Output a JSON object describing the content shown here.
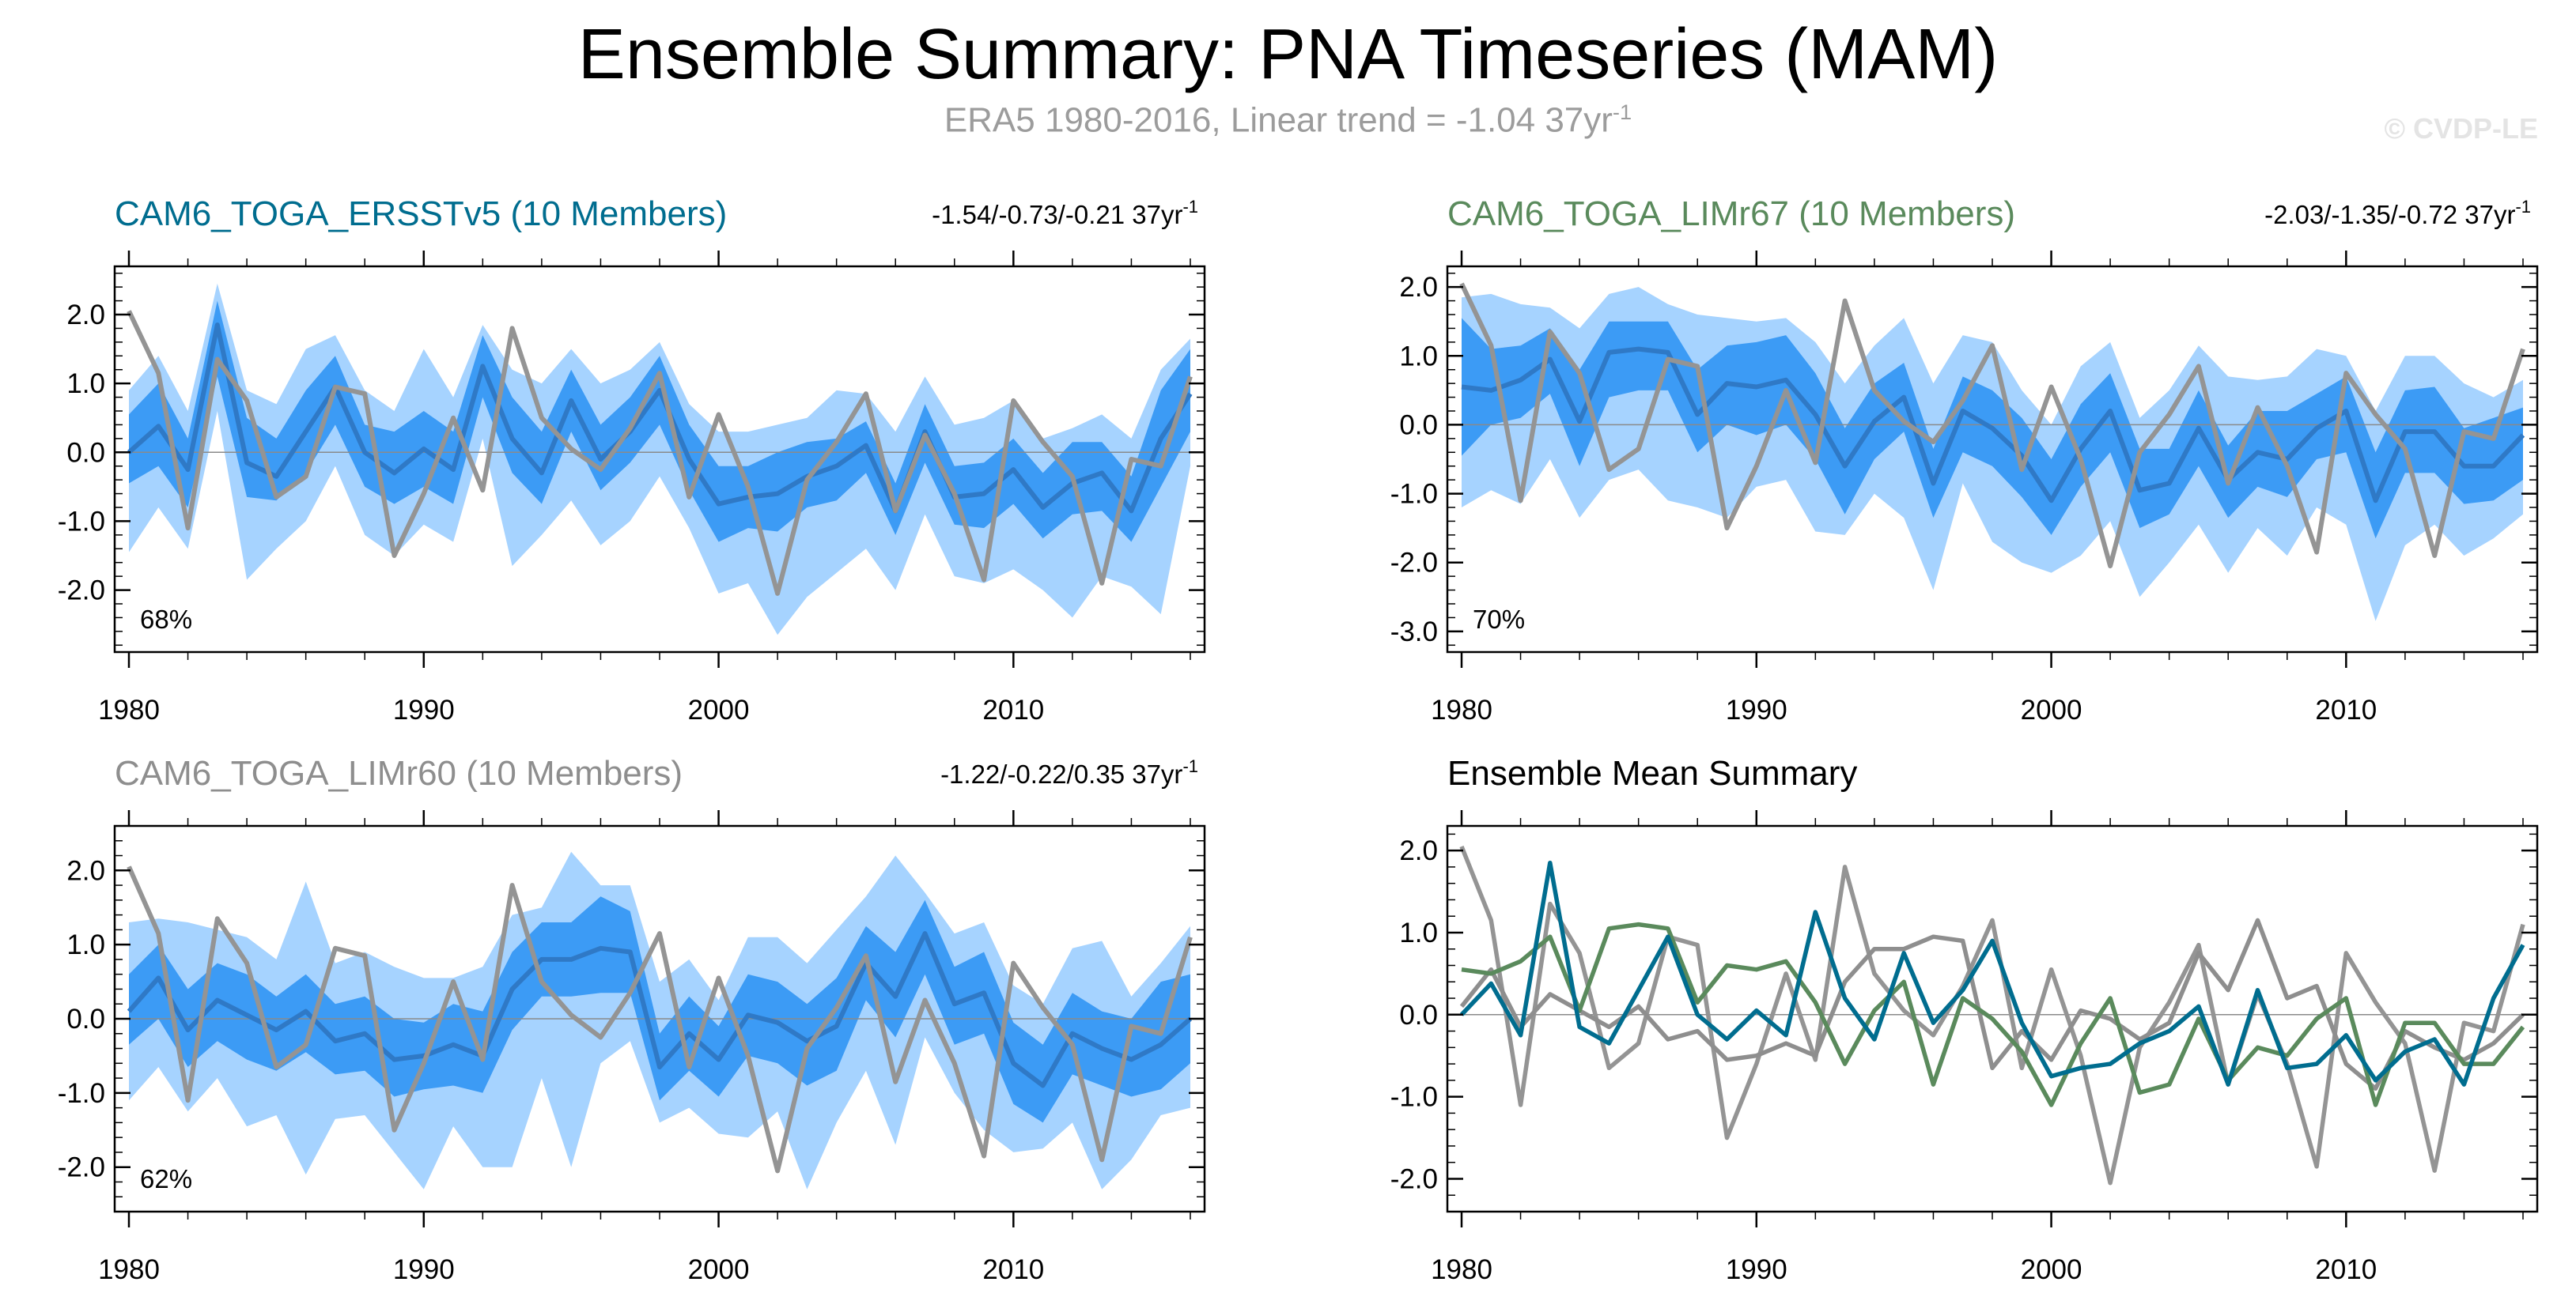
{
  "page": {
    "title": "Ensemble Summary: PNA Timeseries (MAM)",
    "subtitle": "ERA5 1980-2016, Linear trend = -1.04 37yr",
    "subtitle_exp": "-1",
    "credit": "© CVDP-LE"
  },
  "colors": {
    "band_outer": "#a6d3ff",
    "band_inner": "#3c9bf5",
    "ens_mean": "#2f79c6",
    "obs": "#949494",
    "ersst": "#006d8f",
    "limr67": "#5a8a5c",
    "limr60": "#8e8e8e"
  },
  "chart_data": [
    {
      "type": "area",
      "id": "ersst",
      "title": "CAM6_TOGA_ERSSTv5 (10 Members)",
      "trend": "-1.54/-0.73/-0.21 37yr",
      "trend_exp": "-1",
      "percent_label": "68%",
      "ylim": [
        -2.9,
        2.7
      ],
      "yticks": [
        -2,
        -1,
        0,
        1,
        2
      ],
      "ytick_labels": [
        "-2.0",
        "-1.0",
        "0.0",
        "1.0",
        "2.0"
      ],
      "xticks": [
        1980,
        1990,
        2000,
        2010
      ],
      "x": [
        1980,
        1981,
        1982,
        1983,
        1984,
        1985,
        1986,
        1987,
        1988,
        1989,
        1990,
        1991,
        1992,
        1993,
        1994,
        1995,
        1996,
        1997,
        1998,
        1999,
        2000,
        2001,
        2002,
        2003,
        2004,
        2005,
        2006,
        2007,
        2008,
        2009,
        2010,
        2011,
        2012,
        2013,
        2014,
        2015,
        2016
      ],
      "ens_mean": [
        0.0,
        0.38,
        -0.25,
        1.85,
        -0.15,
        -0.35,
        0.3,
        0.95,
        0.0,
        -0.3,
        0.05,
        -0.25,
        1.25,
        0.2,
        -0.3,
        0.75,
        -0.1,
        0.3,
        0.9,
        -0.1,
        -0.75,
        -0.65,
        -0.6,
        -0.35,
        -0.2,
        0.1,
        -0.85,
        0.3,
        -0.65,
        -0.6,
        -0.25,
        -0.8,
        -0.45,
        -0.3,
        -0.85,
        0.2,
        0.85
      ],
      "inner_upper": [
        0.55,
        1.0,
        0.2,
        2.2,
        0.5,
        0.2,
        0.9,
        1.4,
        0.4,
        0.3,
        0.6,
        0.3,
        1.7,
        0.8,
        0.3,
        1.2,
        0.4,
        0.8,
        1.4,
        0.4,
        -0.2,
        -0.2,
        0.0,
        0.15,
        0.2,
        0.45,
        -0.45,
        0.7,
        -0.2,
        -0.15,
        0.2,
        -0.3,
        0.15,
        0.15,
        -0.35,
        0.9,
        1.5
      ],
      "inner_lower": [
        -0.45,
        -0.2,
        -0.8,
        1.1,
        -0.65,
        -0.7,
        -0.3,
        0.4,
        -0.5,
        -0.75,
        -0.5,
        -0.75,
        0.8,
        -0.3,
        -0.75,
        0.3,
        -0.55,
        -0.15,
        0.4,
        -0.55,
        -1.3,
        -1.1,
        -1.15,
        -0.8,
        -0.7,
        -0.3,
        -1.2,
        -0.15,
        -1.05,
        -1.1,
        -0.75,
        -1.25,
        -0.9,
        -0.85,
        -1.3,
        -0.5,
        0.3
      ],
      "outer_upper": [
        0.9,
        1.4,
        0.6,
        2.45,
        0.9,
        0.7,
        1.5,
        1.7,
        0.9,
        0.6,
        1.5,
        0.8,
        1.85,
        1.2,
        1.0,
        1.5,
        1.0,
        1.2,
        1.6,
        0.7,
        0.3,
        0.3,
        0.4,
        0.5,
        0.9,
        0.85,
        0.3,
        1.1,
        0.4,
        0.5,
        0.75,
        0.2,
        0.35,
        0.55,
        0.2,
        1.2,
        1.65
      ],
      "outer_lower": [
        -1.45,
        -0.8,
        -1.4,
        0.6,
        -1.85,
        -1.4,
        -1.0,
        -0.2,
        -1.2,
        -1.5,
        -1.05,
        -1.3,
        0.2,
        -1.65,
        -1.2,
        -0.7,
        -1.35,
        -1.0,
        -0.35,
        -1.1,
        -2.05,
        -1.9,
        -2.65,
        -2.1,
        -1.75,
        -1.4,
        -2.0,
        -0.9,
        -1.8,
        -1.9,
        -1.7,
        -2.0,
        -2.4,
        -1.8,
        -1.95,
        -2.35,
        -0.2
      ],
      "obs": [
        2.05,
        1.15,
        -1.1,
        1.35,
        0.75,
        -0.65,
        -0.35,
        0.95,
        0.85,
        -1.5,
        -0.6,
        0.5,
        -0.55,
        1.8,
        0.5,
        0.05,
        -0.25,
        0.35,
        1.15,
        -0.65,
        0.55,
        -0.5,
        -2.05,
        -0.4,
        0.15,
        0.85,
        -0.85,
        0.25,
        -0.6,
        -1.85,
        0.75,
        0.15,
        -0.35,
        -1.9,
        -0.1,
        -0.2,
        1.1
      ]
    },
    {
      "type": "area",
      "id": "limr67",
      "title": "CAM6_TOGA_LIMr67 (10 Members)",
      "trend": "-2.03/-1.35/-0.72 37yr",
      "trend_exp": "-1",
      "percent_label": "70%",
      "ylim": [
        -3.3,
        2.3
      ],
      "yticks": [
        -3,
        -2,
        -1,
        0,
        1,
        2
      ],
      "ytick_labels": [
        "-3.0",
        "-2.0",
        "-1.0",
        "0.0",
        "1.0",
        "2.0"
      ],
      "xticks": [
        1980,
        1990,
        2000,
        2010
      ],
      "x": [
        1980,
        1981,
        1982,
        1983,
        1984,
        1985,
        1986,
        1987,
        1988,
        1989,
        1990,
        1991,
        1992,
        1993,
        1994,
        1995,
        1996,
        1997,
        1998,
        1999,
        2000,
        2001,
        2002,
        2003,
        2004,
        2005,
        2006,
        2007,
        2008,
        2009,
        2010,
        2011,
        2012,
        2013,
        2014,
        2015,
        2016
      ],
      "ens_mean": [
        0.55,
        0.5,
        0.65,
        0.95,
        0.05,
        1.05,
        1.1,
        1.05,
        0.15,
        0.6,
        0.55,
        0.65,
        0.15,
        -0.6,
        0.05,
        0.4,
        -0.85,
        0.2,
        -0.05,
        -0.45,
        -1.1,
        -0.35,
        0.2,
        -0.95,
        -0.85,
        -0.05,
        -0.8,
        -0.4,
        -0.5,
        -0.05,
        0.2,
        -1.1,
        -0.1,
        -0.1,
        -0.6,
        -0.6,
        -0.15
      ],
      "inner_upper": [
        1.55,
        1.1,
        1.15,
        1.4,
        0.8,
        1.5,
        1.5,
        1.5,
        0.8,
        1.15,
        1.2,
        1.3,
        0.75,
        -0.05,
        0.6,
        0.9,
        -0.35,
        0.7,
        0.5,
        0.1,
        -0.5,
        0.3,
        0.75,
        -0.35,
        -0.35,
        0.5,
        -0.3,
        0.2,
        0.2,
        0.45,
        0.7,
        -0.4,
        0.5,
        0.55,
        -0.05,
        0.1,
        0.25
      ],
      "inner_lower": [
        -0.45,
        0.0,
        0.1,
        0.45,
        -0.6,
        0.4,
        0.5,
        0.5,
        -0.4,
        0.0,
        -0.15,
        0.0,
        -0.5,
        -1.3,
        -0.5,
        -0.1,
        -1.35,
        -0.4,
        -0.6,
        -1.05,
        -1.6,
        -0.9,
        -0.4,
        -1.5,
        -1.3,
        -0.6,
        -1.35,
        -0.9,
        -1.05,
        -0.5,
        -0.4,
        -1.65,
        -0.7,
        -0.7,
        -1.15,
        -1.1,
        -0.8
      ],
      "outer_upper": [
        1.85,
        1.9,
        1.75,
        1.7,
        1.4,
        1.9,
        2.0,
        1.75,
        1.6,
        1.55,
        1.5,
        1.55,
        1.2,
        0.6,
        1.15,
        1.55,
        0.6,
        1.3,
        1.2,
        0.5,
        0.0,
        0.85,
        1.2,
        0.1,
        0.5,
        1.15,
        0.7,
        0.65,
        0.7,
        1.1,
        1.0,
        0.2,
        1.0,
        1.0,
        0.6,
        0.4,
        0.65
      ],
      "outer_lower": [
        -1.2,
        -0.95,
        -1.15,
        -0.5,
        -1.35,
        -0.8,
        -0.65,
        -1.1,
        -1.2,
        -1.35,
        -0.9,
        -0.8,
        -1.55,
        -1.6,
        -1.0,
        -1.35,
        -2.4,
        -0.85,
        -1.7,
        -2.0,
        -2.15,
        -1.9,
        -1.4,
        -2.5,
        -2.0,
        -1.45,
        -2.15,
        -1.5,
        -1.9,
        -1.2,
        -1.45,
        -2.85,
        -1.75,
        -1.45,
        -1.9,
        -1.65,
        -1.3
      ],
      "obs": [
        2.05,
        1.15,
        -1.1,
        1.35,
        0.75,
        -0.65,
        -0.35,
        0.95,
        0.85,
        -1.5,
        -0.6,
        0.5,
        -0.55,
        1.8,
        0.5,
        0.05,
        -0.25,
        0.35,
        1.15,
        -0.65,
        0.55,
        -0.5,
        -2.05,
        -0.4,
        0.15,
        0.85,
        -0.85,
        0.25,
        -0.6,
        -1.85,
        0.75,
        0.15,
        -0.35,
        -1.9,
        -0.1,
        -0.2,
        1.1
      ]
    },
    {
      "type": "area",
      "id": "limr60",
      "title": "CAM6_TOGA_LIMr60 (10 Members)",
      "trend": "-1.22/-0.22/0.35 37yr",
      "trend_exp": "-1",
      "percent_label": "62%",
      "ylim": [
        -2.6,
        2.6
      ],
      "yticks": [
        -2,
        -1,
        0,
        1,
        2
      ],
      "ytick_labels": [
        "-2.0",
        "-1.0",
        "0.0",
        "1.0",
        "2.0"
      ],
      "xticks": [
        1980,
        1990,
        2000,
        2010
      ],
      "x": [
        1980,
        1981,
        1982,
        1983,
        1984,
        1985,
        1986,
        1987,
        1988,
        1989,
        1990,
        1991,
        1992,
        1993,
        1994,
        1995,
        1996,
        1997,
        1998,
        1999,
        2000,
        2001,
        2002,
        2003,
        2004,
        2005,
        2006,
        2007,
        2008,
        2009,
        2010,
        2011,
        2012,
        2013,
        2014,
        2015,
        2016
      ],
      "ens_mean": [
        0.1,
        0.55,
        -0.15,
        0.25,
        0.05,
        -0.15,
        0.1,
        -0.3,
        -0.2,
        -0.55,
        -0.5,
        -0.35,
        -0.5,
        0.4,
        0.8,
        0.8,
        0.95,
        0.9,
        -0.65,
        -0.2,
        -0.55,
        0.05,
        -0.05,
        -0.3,
        -0.1,
        0.75,
        0.3,
        1.15,
        0.2,
        0.35,
        -0.6,
        -0.9,
        -0.2,
        -0.4,
        -0.55,
        -0.35,
        0.0
      ],
      "inner_upper": [
        0.6,
        1.0,
        0.4,
        0.75,
        0.6,
        0.3,
        0.6,
        0.2,
        0.3,
        0.0,
        -0.05,
        0.2,
        0.1,
        0.9,
        1.3,
        1.3,
        1.65,
        1.45,
        -0.2,
        0.3,
        -0.1,
        0.6,
        0.5,
        0.2,
        0.55,
        1.25,
        0.9,
        1.6,
        0.7,
        0.9,
        -0.05,
        -0.35,
        0.35,
        0.1,
        0.0,
        0.5,
        0.6
      ],
      "inner_lower": [
        -0.35,
        0.0,
        -0.65,
        -0.3,
        -0.55,
        -0.7,
        -0.45,
        -0.75,
        -0.7,
        -1.05,
        -0.95,
        -0.9,
        -1.0,
        -0.15,
        0.3,
        0.3,
        0.35,
        0.35,
        -1.1,
        -0.7,
        -1.05,
        -0.5,
        -0.6,
        -0.9,
        -0.7,
        0.25,
        -0.25,
        0.6,
        -0.35,
        -0.2,
        -1.15,
        -1.4,
        -0.75,
        -0.9,
        -1.05,
        -0.95,
        -0.6
      ],
      "outer_upper": [
        1.3,
        1.35,
        1.3,
        1.2,
        1.1,
        0.8,
        1.85,
        0.75,
        0.9,
        0.7,
        0.55,
        0.55,
        0.7,
        1.4,
        1.5,
        2.25,
        1.8,
        1.8,
        0.5,
        0.8,
        0.25,
        1.1,
        1.1,
        0.75,
        1.2,
        1.65,
        2.2,
        1.7,
        1.15,
        1.3,
        0.45,
        0.2,
        0.95,
        1.05,
        0.3,
        0.75,
        1.25
      ],
      "outer_lower": [
        -1.1,
        -0.65,
        -1.25,
        -0.8,
        -1.45,
        -1.3,
        -2.1,
        -1.35,
        -1.3,
        -1.8,
        -2.3,
        -1.45,
        -2.0,
        -2.0,
        -0.8,
        -2.0,
        -0.6,
        -0.3,
        -1.4,
        -1.2,
        -1.55,
        -1.6,
        -1.25,
        -2.3,
        -1.4,
        -0.7,
        -1.7,
        -0.25,
        -1.0,
        -1.5,
        -1.8,
        -1.75,
        -1.4,
        -2.3,
        -1.9,
        -1.3,
        -1.2
      ],
      "obs": [
        2.05,
        1.15,
        -1.1,
        1.35,
        0.75,
        -0.65,
        -0.35,
        0.95,
        0.85,
        -1.5,
        -0.6,
        0.5,
        -0.55,
        1.8,
        0.5,
        0.05,
        -0.25,
        0.35,
        1.15,
        -0.65,
        0.55,
        -0.5,
        -2.05,
        -0.4,
        0.15,
        0.85,
        -0.85,
        0.25,
        -0.6,
        -1.85,
        0.75,
        0.15,
        -0.35,
        -1.9,
        -0.1,
        -0.2,
        1.1
      ]
    },
    {
      "type": "line",
      "id": "summary",
      "title": "Ensemble Mean Summary",
      "ylim": [
        -2.4,
        2.3
      ],
      "yticks": [
        -2,
        -1,
        0,
        1,
        2
      ],
      "ytick_labels": [
        "-2.0",
        "-1.0",
        "0.0",
        "1.0",
        "2.0"
      ],
      "xticks": [
        1980,
        1990,
        2000,
        2010
      ],
      "x": [
        1980,
        1981,
        1982,
        1983,
        1984,
        1985,
        1986,
        1987,
        1988,
        1989,
        1990,
        1991,
        1992,
        1993,
        1994,
        1995,
        1996,
        1997,
        1998,
        1999,
        2000,
        2001,
        2002,
        2003,
        2004,
        2005,
        2006,
        2007,
        2008,
        2009,
        2010,
        2011,
        2012,
        2013,
        2014,
        2015,
        2016
      ],
      "series": [
        {
          "name": "ERA5",
          "color_key": "obs",
          "values": [
            2.05,
            1.15,
            -1.1,
            1.35,
            0.75,
            -0.65,
            -0.35,
            0.95,
            0.85,
            -1.5,
            -0.6,
            0.5,
            -0.55,
            1.8,
            0.5,
            0.05,
            -0.25,
            0.35,
            1.15,
            -0.65,
            0.55,
            -0.5,
            -2.05,
            -0.4,
            0.15,
            0.85,
            -0.85,
            0.25,
            -0.6,
            -1.85,
            0.75,
            0.15,
            -0.35,
            -1.9,
            -0.1,
            -0.2,
            1.1
          ]
        },
        {
          "name": "CAM6_TOGA_LIMr60",
          "color_key": "limr60",
          "values": [
            0.1,
            0.55,
            -0.15,
            0.25,
            0.05,
            -0.15,
            0.1,
            -0.3,
            -0.2,
            -0.55,
            -0.5,
            -0.35,
            -0.5,
            0.4,
            0.8,
            0.8,
            0.95,
            0.9,
            -0.65,
            -0.2,
            -0.55,
            0.05,
            -0.05,
            -0.3,
            -0.1,
            0.75,
            0.3,
            1.15,
            0.2,
            0.35,
            -0.6,
            -0.9,
            -0.2,
            -0.4,
            -0.55,
            -0.35,
            0.0
          ]
        },
        {
          "name": "CAM6_TOGA_LIMr67",
          "color_key": "limr67",
          "values": [
            0.55,
            0.5,
            0.65,
            0.95,
            0.05,
            1.05,
            1.1,
            1.05,
            0.15,
            0.6,
            0.55,
            0.65,
            0.15,
            -0.6,
            0.05,
            0.4,
            -0.85,
            0.2,
            -0.05,
            -0.45,
            -1.1,
            -0.35,
            0.2,
            -0.95,
            -0.85,
            -0.05,
            -0.8,
            -0.4,
            -0.5,
            -0.05,
            0.2,
            -1.1,
            -0.1,
            -0.1,
            -0.6,
            -0.6,
            -0.15
          ]
        },
        {
          "name": "CAM6_TOGA_ERSSTv5",
          "color_key": "ersst",
          "values": [
            0.0,
            0.38,
            -0.25,
            1.85,
            -0.15,
            -0.35,
            0.3,
            0.95,
            0.0,
            -0.3,
            0.05,
            -0.25,
            1.25,
            0.2,
            -0.3,
            0.75,
            -0.1,
            0.3,
            0.9,
            -0.1,
            -0.75,
            -0.65,
            -0.6,
            -0.35,
            -0.2,
            0.1,
            -0.85,
            0.3,
            -0.65,
            -0.6,
            -0.25,
            -0.8,
            -0.45,
            -0.3,
            -0.85,
            0.2,
            0.85
          ]
        }
      ]
    }
  ]
}
